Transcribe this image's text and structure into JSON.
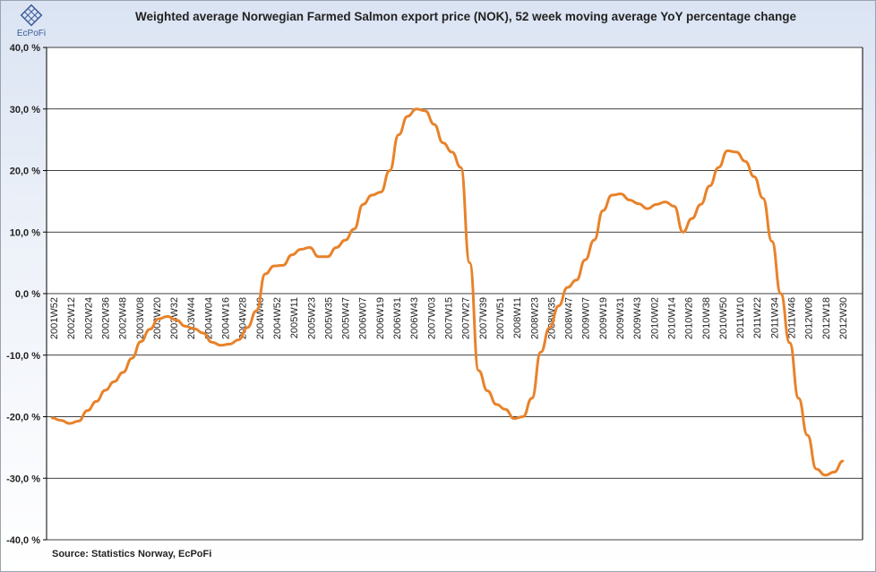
{
  "title": "Weighted average Norwegian Farmed Salmon export price (NOK), 52 week moving average YoY percentage change",
  "source": "Source: Statistics  Norway, EcPoFi",
  "logo_text": "EcPoFi",
  "colors": {
    "line": "#e8822a",
    "grid": "#000000",
    "frame": "#9aa3b0"
  },
  "chart_data": {
    "type": "line",
    "title": "Weighted average Norwegian Farmed Salmon export price (NOK), 52 week moving average YoY percentage change",
    "ylim": [
      -40,
      40
    ],
    "yticks": [
      "40,0 %",
      "30,0 %",
      "20,0 %",
      "10,0 %",
      "0,0 %",
      "-10,0 %",
      "-20,0 %",
      "-30,0 %",
      "-40,0 %"
    ],
    "ytick_values": [
      40,
      30,
      20,
      10,
      0,
      -10,
      -20,
      -30,
      -40
    ],
    "grid": true,
    "xticks": [
      "2001W52",
      "2002W12",
      "2002W24",
      "2002W36",
      "2002W48",
      "2003W08",
      "2003W20",
      "2003W32",
      "2003W44",
      "2004W04",
      "2004W16",
      "2004W28",
      "2004W40",
      "2004W52",
      "2005W11",
      "2005W23",
      "2005W35",
      "2005W47",
      "2006W07",
      "2006W19",
      "2006W31",
      "2006W43",
      "2007W03",
      "2007W15",
      "2007W27",
      "2007W39",
      "2007W51",
      "2008W11",
      "2008W23",
      "2008W35",
      "2008W47",
      "2009W07",
      "2009W19",
      "2009W31",
      "2009W43",
      "2010W02",
      "2010W14",
      "2010W26",
      "2010W38",
      "2010W50",
      "2011W10",
      "2011W22",
      "2011W34",
      "2011W46",
      "2012W06",
      "2012W18",
      "2012W30"
    ],
    "series": [
      {
        "values": [
          -20.2,
          -20.6,
          -21.1,
          -20.7,
          -19.0,
          -17.5,
          -15.7,
          -14.3,
          -12.8,
          -10.5,
          -7.8,
          -5.8,
          -4.1,
          -3.7,
          -4.3,
          -5.3,
          -5.7,
          -6.4,
          -7.9,
          -8.4,
          -8.2,
          -7.5,
          -5.5,
          -2.8,
          3.2,
          4.5,
          4.6,
          6.3,
          7.2,
          7.5,
          6.0,
          6.0,
          7.5,
          8.7,
          10.5,
          14.5,
          16.0,
          16.5,
          20.0,
          25.8,
          28.8,
          30.0,
          29.7,
          27.5,
          24.5,
          23.0,
          20.5,
          5.0,
          -12.5,
          -15.8,
          -18.0,
          -18.8,
          -20.3,
          -20.0,
          -17.0,
          -9.5,
          -5.5,
          -2.0,
          1.0,
          2.2,
          5.5,
          8.7,
          13.5,
          16.0,
          16.2,
          15.2,
          14.6,
          13.8,
          14.5,
          14.9,
          14.2,
          10.0,
          12.2,
          14.5,
          17.5,
          20.5,
          23.2,
          23.0,
          21.5,
          19.0,
          15.5,
          8.5,
          0.0,
          -8.0,
          -17.0,
          -23.0,
          -28.5,
          -29.5,
          -29.0,
          -27.2
        ],
        "xtick_positions": [
          0,
          1,
          3,
          4,
          6,
          8,
          9,
          11,
          13,
          14,
          15,
          16,
          18,
          19,
          20,
          21,
          23,
          24,
          26,
          28,
          29,
          30,
          31,
          32,
          33,
          34,
          35,
          36,
          38,
          39,
          41,
          42,
          43,
          44,
          45,
          46,
          47,
          48,
          49,
          51,
          52,
          53,
          54,
          55,
          56,
          57,
          59,
          60,
          62,
          64,
          65,
          66,
          67,
          68,
          69,
          71,
          72,
          73,
          74,
          76,
          77,
          79,
          80,
          82,
          83,
          84,
          85,
          86,
          87,
          88,
          89,
          90,
          91,
          92,
          93,
          94,
          95,
          96,
          97,
          98,
          99,
          100,
          101,
          102,
          104,
          105,
          106,
          107,
          108,
          109
        ]
      }
    ]
  }
}
